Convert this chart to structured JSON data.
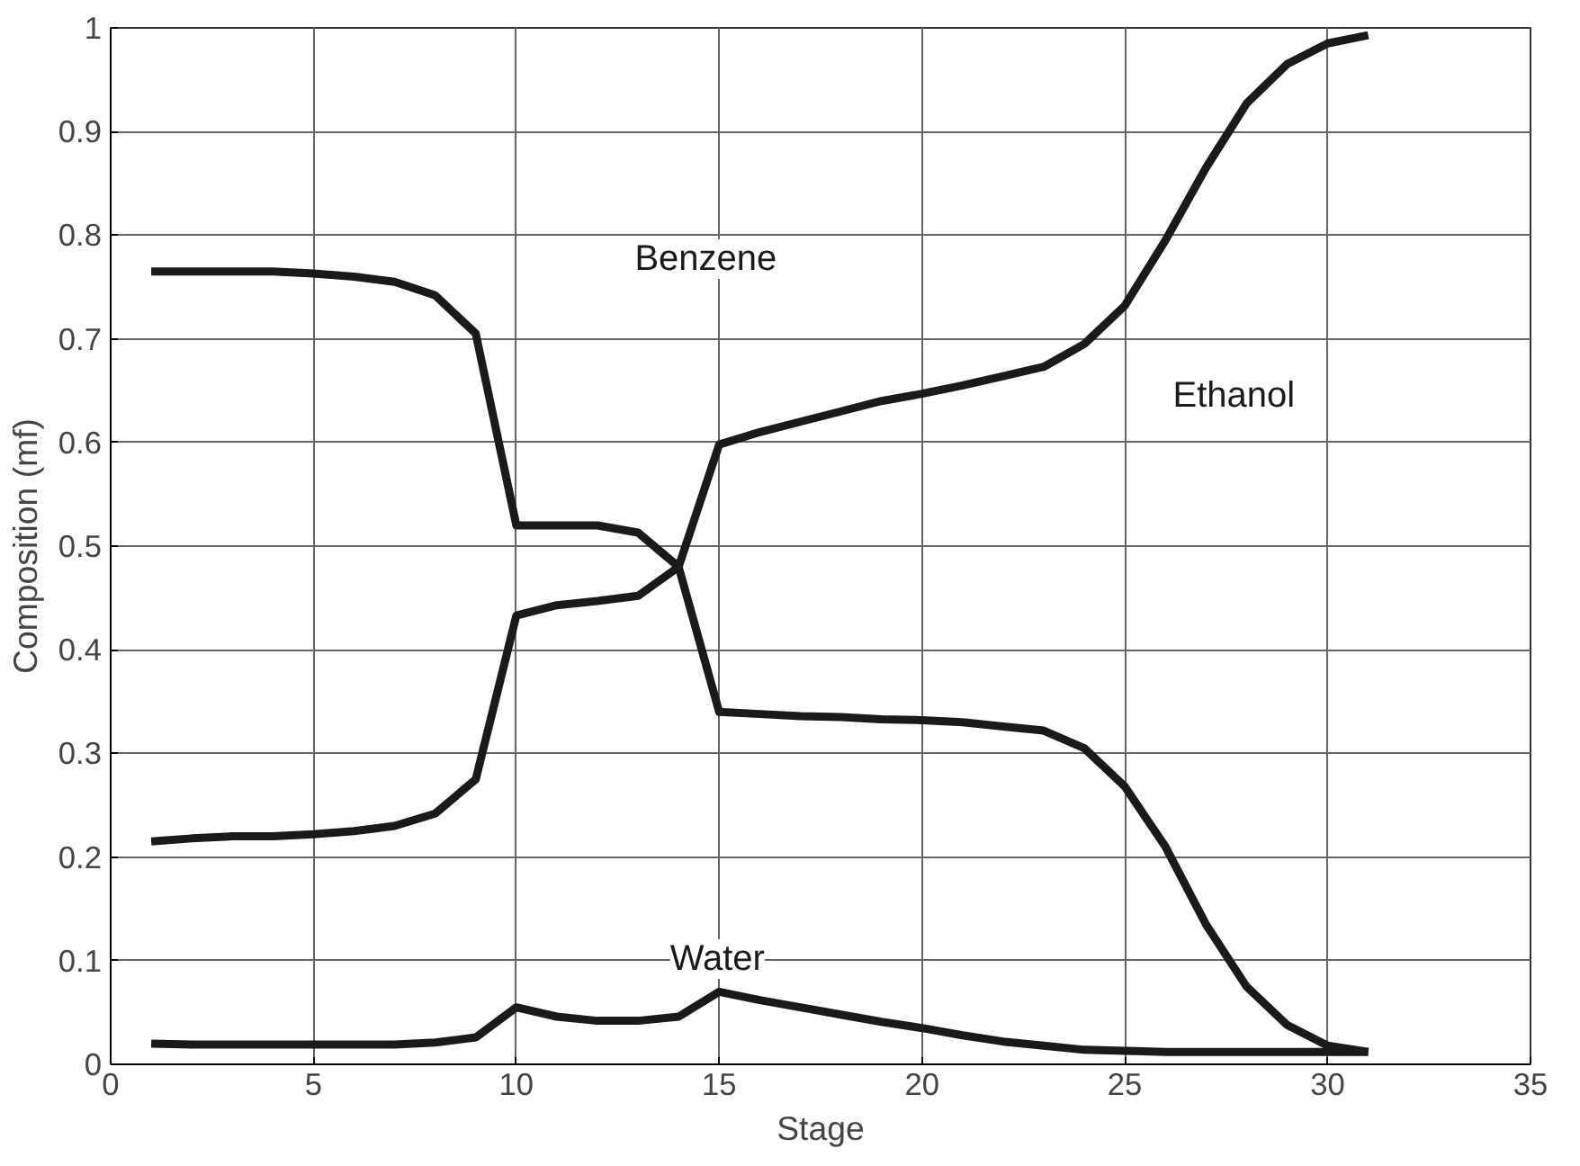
{
  "chart_data": {
    "type": "line",
    "xlabel": "Stage",
    "ylabel": "Composition (mf)",
    "x": [
      1,
      2,
      3,
      4,
      5,
      6,
      7,
      8,
      9,
      10,
      11,
      12,
      13,
      14,
      15,
      16,
      17,
      18,
      19,
      20,
      21,
      22,
      23,
      24,
      25,
      26,
      27,
      28,
      29,
      30,
      31
    ],
    "series": [
      {
        "color": "#1a1a1a",
        "values": [
          0.765,
          0.765,
          0.765,
          0.765,
          0.763,
          0.76,
          0.755,
          0.742,
          0.705,
          0.52,
          0.52,
          0.52,
          0.513,
          0.48,
          0.34,
          0.338,
          0.336,
          0.335,
          0.333,
          0.332,
          0.33,
          0.326,
          0.322,
          0.305,
          0.268,
          0.21,
          0.135,
          0.075,
          0.038,
          0.018,
          0.012
        ]
      },
      {
        "color": "#1a1a1a",
        "values": [
          0.215,
          0.218,
          0.22,
          0.22,
          0.222,
          0.225,
          0.23,
          0.242,
          0.275,
          0.433,
          0.443,
          0.447,
          0.452,
          0.48,
          0.598,
          0.61,
          0.62,
          0.63,
          0.64,
          0.647,
          0.655,
          0.664,
          0.673,
          0.695,
          0.732,
          0.795,
          0.865,
          0.927,
          0.965,
          0.985,
          0.993
        ]
      },
      {
        "color": "#1a1a1a",
        "values": [
          0.02,
          0.019,
          0.019,
          0.019,
          0.019,
          0.019,
          0.019,
          0.021,
          0.026,
          0.055,
          0.046,
          0.042,
          0.042,
          0.046,
          0.07,
          0.062,
          0.055,
          0.048,
          0.041,
          0.035,
          0.028,
          0.022,
          0.018,
          0.014,
          0.013,
          0.012,
          0.012,
          0.012,
          0.012,
          0.012,
          0.012
        ]
      }
    ],
    "annotations": [
      "Benzene",
      "Ethanol",
      "Water"
    ],
    "xlim": [
      0,
      35
    ],
    "xticks": [
      0,
      5,
      10,
      15,
      20,
      25,
      30,
      35
    ],
    "ylim": [
      0,
      1
    ],
    "yticks": [
      0,
      {
        "value": 0.1,
        "label": "0.1"
      },
      {
        "value": 0.2,
        "label": "0.2"
      },
      {
        "value": 0.3,
        "label": "0.3"
      },
      {
        "value": 0.4,
        "label": "0.4"
      },
      {
        "value": 0.5,
        "label": "0.5"
      },
      {
        "value": 0.6,
        "label": "0.6"
      },
      {
        "value": 0.7,
        "label": "0.7"
      },
      {
        "value": 0.8,
        "label": "0.8"
      },
      {
        "value": 0.9,
        "label": "0.9"
      },
      1
    ],
    "grid": true,
    "marker": "none",
    "line_style": "solid"
  }
}
